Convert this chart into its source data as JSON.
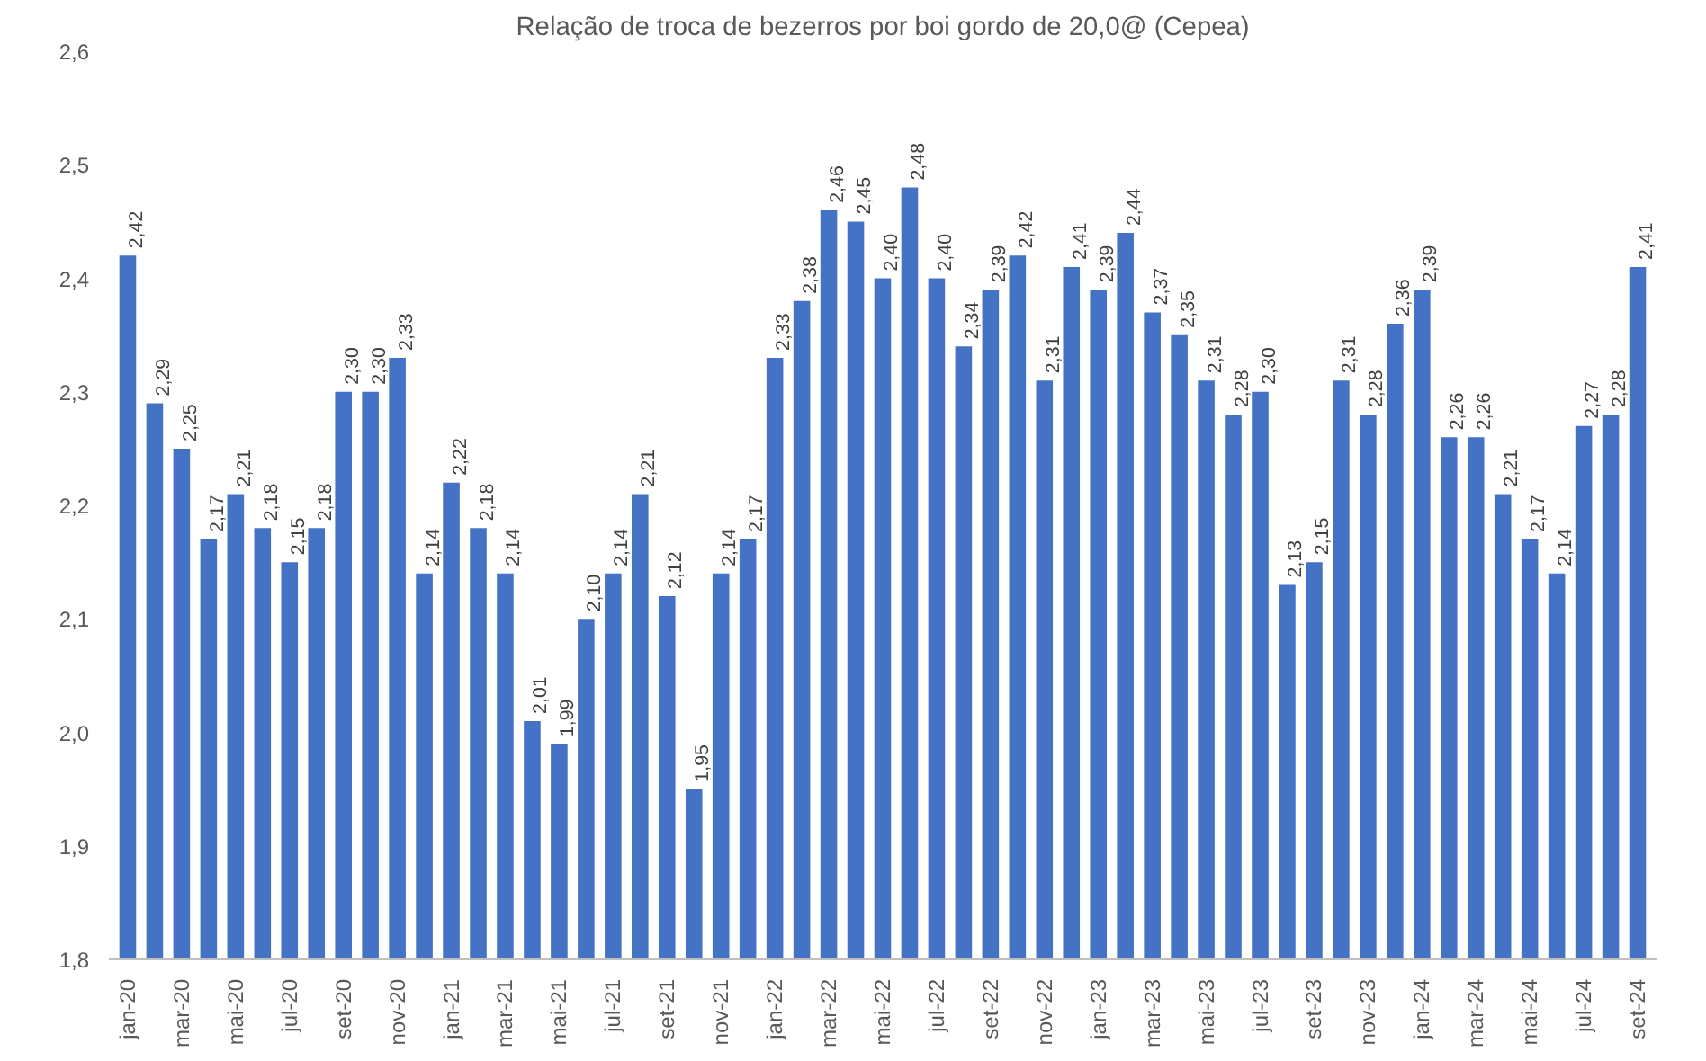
{
  "chart_data": {
    "type": "bar",
    "title": "Relação de troca de bezerros por boi gordo de 20,0@ (Cepea)",
    "categories": [
      "jan-20",
      null,
      "mar-20",
      null,
      "mai-20",
      null,
      "jul-20",
      null,
      "set-20",
      null,
      "nov-20",
      null,
      "jan-21",
      null,
      "mar-21",
      null,
      "mai-21",
      null,
      "jul-21",
      null,
      "set-21",
      null,
      "nov-21",
      null,
      "jan-22",
      null,
      "mar-22",
      null,
      "mai-22",
      null,
      "jul-22",
      null,
      "set-22",
      null,
      "nov-22",
      null,
      "jan-23",
      null,
      "mar-23",
      null,
      "mai-23",
      null,
      "jul-23",
      null,
      "set-23",
      null,
      "nov-23",
      null,
      "jan-24",
      null,
      "mar-24",
      null,
      "mai-24",
      null,
      "jul-24",
      null,
      "set-24"
    ],
    "values": [
      2.42,
      2.29,
      2.25,
      2.17,
      2.21,
      2.18,
      2.15,
      2.18,
      2.3,
      2.3,
      2.33,
      2.14,
      2.22,
      2.18,
      2.14,
      2.01,
      1.99,
      2.1,
      2.14,
      2.21,
      2.12,
      1.95,
      2.14,
      2.17,
      2.33,
      2.38,
      2.46,
      2.45,
      2.4,
      2.48,
      2.4,
      2.34,
      2.39,
      2.42,
      2.31,
      2.41,
      2.39,
      2.44,
      2.37,
      2.35,
      2.31,
      2.28,
      2.3,
      2.13,
      2.15,
      2.31,
      2.28,
      2.36,
      2.39,
      2.26,
      2.26,
      2.21,
      2.17,
      2.14,
      2.27,
      2.28,
      2.41
    ],
    "value_labels": [
      "2,42",
      "2,29",
      "2,25",
      "2,17",
      "2,21",
      "2,18",
      "2,15",
      "2,18",
      "2,30",
      "2,30",
      "2,33",
      "2,14",
      "2,22",
      "2,18",
      "2,14",
      "2,01",
      "1,99",
      "2,10",
      "2,14",
      "2,21",
      "2,12",
      "1,95",
      "2,14",
      "2,17",
      "2,33",
      "2,38",
      "2,46",
      "2,45",
      "2,40",
      "2,48",
      "2,40",
      "2,34",
      "2,39",
      "2,42",
      "2,31",
      "2,41",
      "2,39",
      "2,44",
      "2,37",
      "2,35",
      "2,31",
      "2,28",
      "2,30",
      "2,13",
      "2,15",
      "2,31",
      "2,28",
      "2,36",
      "2,39",
      "2,26",
      "2,26",
      "2,21",
      "2,17",
      "2,14",
      "2,27",
      "2,28",
      "2,41"
    ],
    "color": "#4472c4",
    "ylim": [
      1.8,
      2.6
    ],
    "yticks": [
      {
        "value": 1.8,
        "label": "1,8"
      },
      {
        "value": 1.9,
        "label": "1,9"
      },
      {
        "value": 2.0,
        "label": "2,0"
      },
      {
        "value": 2.1,
        "label": "2,1"
      },
      {
        "value": 2.2,
        "label": "2,2"
      },
      {
        "value": 2.3,
        "label": "2,3"
      },
      {
        "value": 2.4,
        "label": "2,4"
      },
      {
        "value": 2.5,
        "label": "2,5"
      },
      {
        "value": 2.6,
        "label": "2,6"
      }
    ],
    "grid": false
  }
}
